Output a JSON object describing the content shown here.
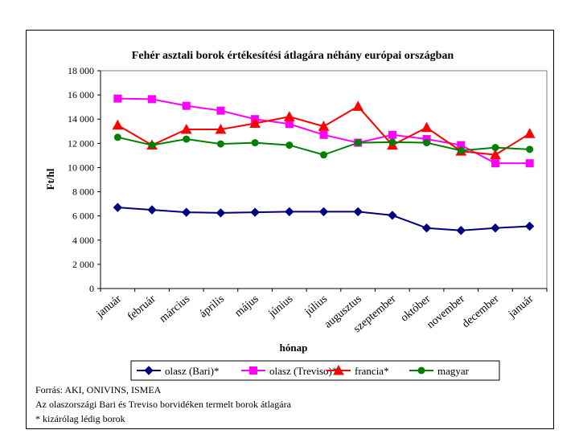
{
  "chart_data": {
    "type": "line",
    "title": "Fehér asztali borok értékesítési átlagára néhány európai országban",
    "xlabel": "hónap",
    "ylabel": "Ft/hl",
    "ylim": [
      0,
      18000
    ],
    "yticks": [
      0,
      2000,
      4000,
      6000,
      8000,
      10000,
      12000,
      14000,
      16000,
      18000
    ],
    "ytick_labels": [
      "0",
      "2 000",
      "4 000",
      "6 000",
      "8 000",
      "10 000",
      "12 000",
      "14 000",
      "16 000",
      "18 000"
    ],
    "categories": [
      "január",
      "február",
      "március",
      "április",
      "május",
      "június",
      "július",
      "augusztus",
      "szeptember",
      "október",
      "november",
      "december",
      "január"
    ],
    "series": [
      {
        "name": "olasz (Bari)*",
        "color": "#00007f",
        "marker": "diamond",
        "values": [
          6700,
          6500,
          6300,
          6250,
          6300,
          6350,
          6350,
          6350,
          6050,
          5000,
          4800,
          5000,
          5150
        ]
      },
      {
        "name": "olasz (Treviso)*",
        "color": "#ff00ff",
        "marker": "square",
        "values": [
          15700,
          15650,
          15100,
          14700,
          14000,
          13600,
          12700,
          12050,
          12700,
          12350,
          11850,
          10350,
          10350
        ]
      },
      {
        "name": "francia*",
        "color": "#ff0000",
        "marker": "triangle",
        "values": [
          13500,
          11850,
          13150,
          13150,
          13650,
          14200,
          13400,
          15050,
          11850,
          13300,
          11350,
          11050,
          12800
        ]
      },
      {
        "name": "magyar",
        "color": "#007f00",
        "marker": "circle",
        "values": [
          12500,
          11850,
          12350,
          11950,
          12050,
          11850,
          11050,
          12050,
          12100,
          12050,
          11400,
          11650,
          11500
        ]
      }
    ],
    "legend_position": "bottom",
    "grid": false
  },
  "footnotes": {
    "source": "Forrás: AKI, ONIVINS, ISMEA",
    "note1": "Az olaszországi Bari és Treviso borvidéken termelt borok átlagára",
    "note2": "* kizárólag lédig borok"
  }
}
